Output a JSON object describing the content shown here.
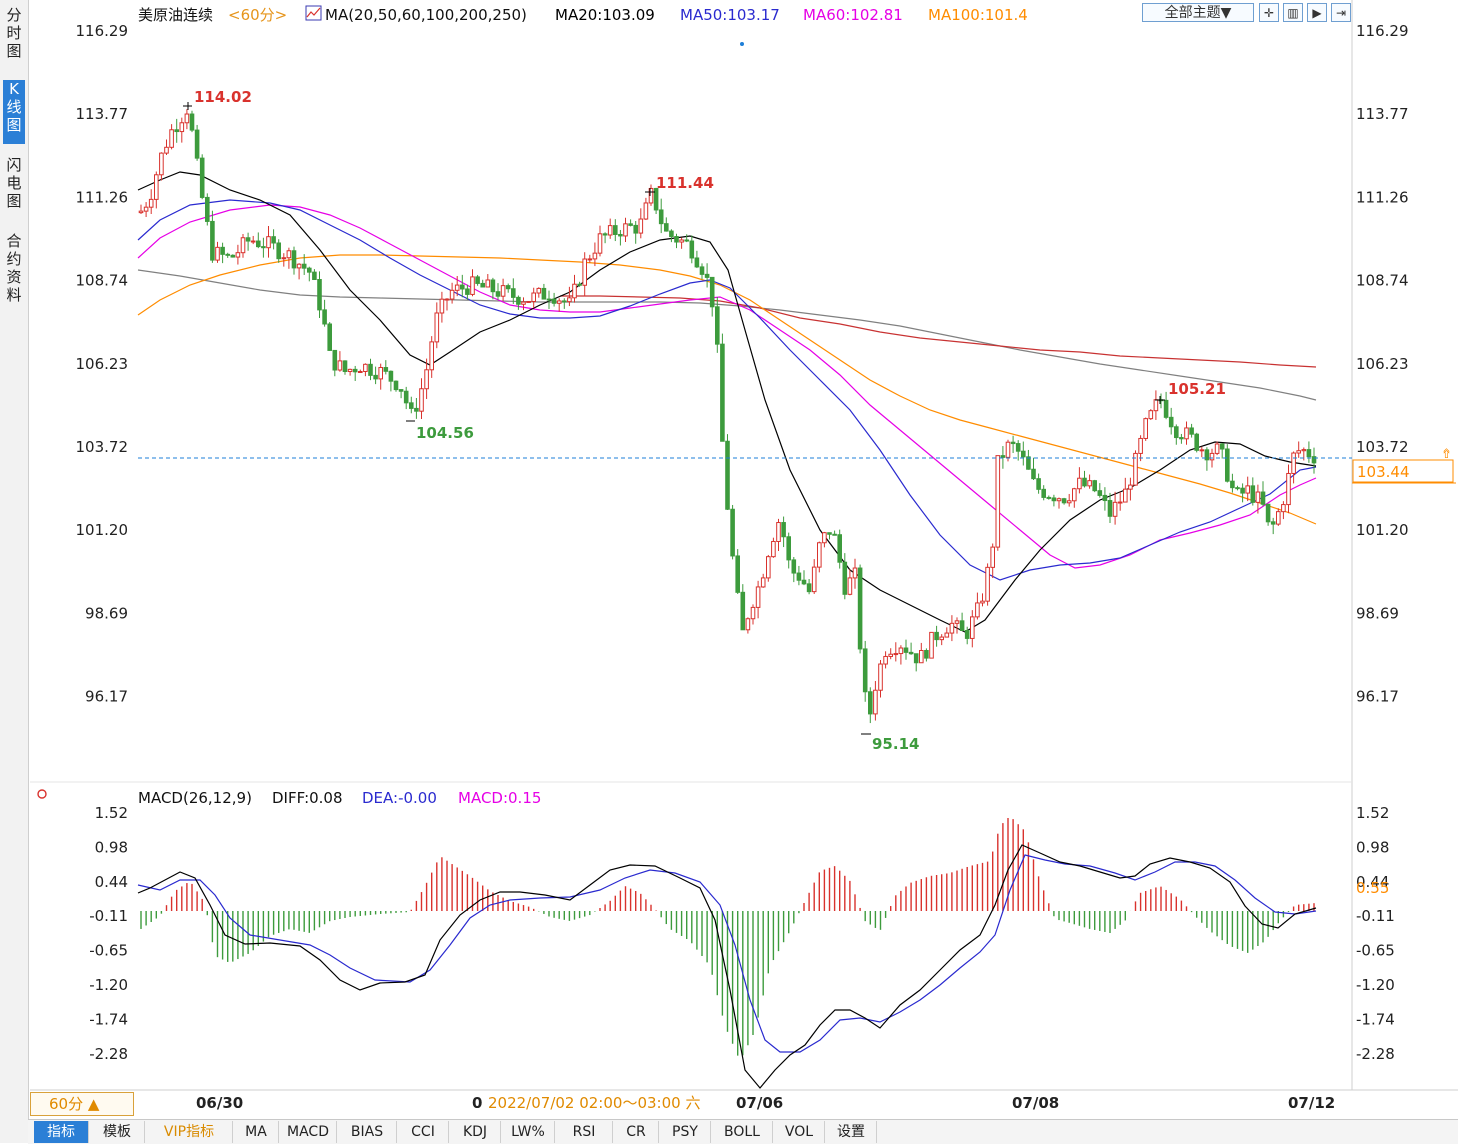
{
  "sidebar": {
    "tabs": [
      {
        "label": "分时图",
        "active": false
      },
      {
        "label": "K线图",
        "active": true
      },
      {
        "label": "闪电图",
        "active": false
      },
      {
        "label": "合约资料",
        "active": false
      }
    ]
  },
  "header": {
    "instrument": "美原油连续",
    "period": "<60分>",
    "ma_params": "MA(20,50,60,100,200,250)",
    "ma20": "MA20:103.09",
    "ma50": "MA50:103.17",
    "ma60": "MA60:102.81",
    "ma100": "MA100:101.4",
    "theme_button": "全部主题▼"
  },
  "colors": {
    "up": "#d9322d",
    "down": "#3d9b3d",
    "ma20": "#000000",
    "ma50": "#2a2acf",
    "ma60": "#e600e6",
    "ma100": "#ff8c00",
    "ma200": "#c83232",
    "ma250": "#808080",
    "dif": "#000000",
    "dea": "#2a2acf",
    "current_price": "#1e7fd8"
  },
  "main_panel": {
    "y_ticks": [
      "116.29",
      "113.77",
      "111.26",
      "108.74",
      "106.23",
      "103.72",
      "101.20",
      "98.69",
      "96.17"
    ],
    "current_price": "103.44",
    "annotations": [
      {
        "text": "114.02",
        "kind": "high"
      },
      {
        "text": "104.56",
        "kind": "low"
      },
      {
        "text": "111.44",
        "kind": "high"
      },
      {
        "text": "95.14",
        "kind": "low"
      },
      {
        "text": "105.21",
        "kind": "high"
      }
    ]
  },
  "macd_panel": {
    "title": "MACD(26,12,9)",
    "diff": "DIFF:0.08",
    "dea": "DEA:-0.00",
    "macd": "MACD:0.15",
    "y_ticks": [
      "1.52",
      "0.98",
      "0.44",
      "-0.11",
      "-0.65",
      "-1.20",
      "-1.74",
      "-2.28"
    ],
    "right_value": "0.55"
  },
  "x_axis": {
    "labels": [
      "06/30",
      "0",
      "07/06",
      "07/08",
      "07/12"
    ],
    "crosshair_time": "2022/07/02 02:00～03:00 六"
  },
  "period_select": "60分 ▲",
  "bottom_tabs": [
    {
      "label": "指标",
      "active": true
    },
    {
      "label": "模板",
      "active": false
    },
    {
      "label": "VIP指标",
      "active": false,
      "vip": true
    },
    {
      "label": "MA",
      "active": false
    },
    {
      "label": "MACD",
      "active": false
    },
    {
      "label": "BIAS",
      "active": false
    },
    {
      "label": "CCI",
      "active": false
    },
    {
      "label": "KDJ",
      "active": false
    },
    {
      "label": "LW%",
      "active": false
    },
    {
      "label": "RSI",
      "active": false
    },
    {
      "label": "CR",
      "active": false
    },
    {
      "label": "PSY",
      "active": false
    },
    {
      "label": "BOLL",
      "active": false
    },
    {
      "label": "VOL",
      "active": false
    },
    {
      "label": "设置",
      "active": false
    }
  ]
}
